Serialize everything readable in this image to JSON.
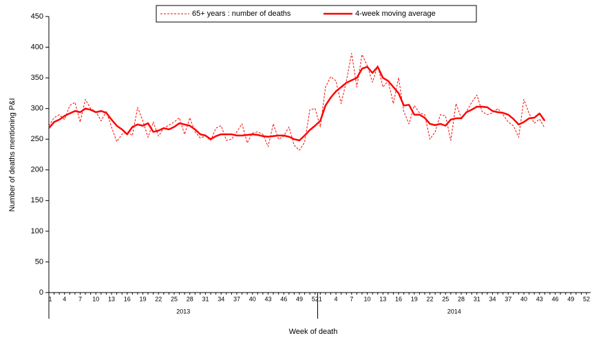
{
  "chart_data": {
    "type": "line",
    "y_label": "Number of deaths mentioning P&I",
    "x_label": "Week of death",
    "x_groups": [
      "2013",
      "2014"
    ],
    "categories": [
      "1",
      null,
      null,
      "4",
      null,
      null,
      "7",
      null,
      null,
      "10",
      null,
      null,
      "13",
      null,
      null,
      "16",
      null,
      null,
      "19",
      null,
      null,
      "22",
      null,
      null,
      "25",
      null,
      null,
      "28",
      null,
      null,
      "31",
      null,
      null,
      "34",
      null,
      null,
      "37",
      null,
      null,
      "40",
      null,
      null,
      "43",
      null,
      null,
      "46",
      null,
      null,
      "49",
      null,
      null,
      "52",
      "1",
      null,
      null,
      "4",
      null,
      null,
      "7",
      null,
      null,
      "10",
      null,
      null,
      "13",
      null,
      null,
      "16",
      null,
      null,
      "19",
      null,
      null,
      "22",
      null,
      null,
      "25",
      null,
      null,
      "28",
      null,
      null,
      "31",
      null,
      null,
      "34",
      null,
      null,
      "37",
      null,
      null,
      "40",
      null,
      null,
      "43",
      null,
      null,
      "46",
      null,
      null,
      "49",
      null,
      null,
      "52"
    ],
    "ylim": [
      0,
      450
    ],
    "yticks": [
      0,
      50,
      100,
      150,
      200,
      250,
      300,
      350,
      400,
      450
    ],
    "series": [
      {
        "name": "65+ years : number of deaths",
        "color": "#ff0000",
        "dashed": true,
        "values": [
          272,
          285,
          290,
          282,
          305,
          310,
          278,
          315,
          300,
          295,
          280,
          295,
          270,
          246,
          258,
          262,
          256,
          302,
          280,
          253,
          278,
          255,
          268,
          273,
          278,
          285,
          258,
          285,
          262,
          252,
          255,
          248,
          268,
          272,
          248,
          250,
          262,
          275,
          244,
          260,
          262,
          258,
          238,
          275,
          250,
          255,
          270,
          240,
          232,
          245,
          298,
          300,
          270,
          335,
          352,
          345,
          308,
          345,
          390,
          335,
          388,
          370,
          343,
          370,
          335,
          345,
          308,
          350,
          295,
          275,
          305,
          293,
          290,
          250,
          262,
          290,
          288,
          248,
          308,
          285,
          295,
          310,
          322,
          295,
          290,
          293,
          300,
          290,
          278,
          272,
          253,
          315,
          292,
          276,
          283,
          268,
          null,
          null,
          null,
          null,
          null,
          null,
          null,
          null
        ]
      },
      {
        "name": "4-week moving average",
        "color": "#ff0000",
        "dashed": false,
        "values": [
          268,
          278,
          282,
          288,
          292,
          296,
          294,
          300,
          298,
          294,
          296,
          293,
          282,
          272,
          266,
          258,
          270,
          274,
          272,
          276,
          262,
          264,
          268,
          266,
          270,
          276,
          274,
          272,
          266,
          258,
          256,
          250,
          255,
          258,
          258,
          258,
          256,
          256,
          257,
          258,
          257,
          255,
          254,
          255,
          256,
          256,
          254,
          250,
          248,
          256,
          265,
          272,
          280,
          305,
          318,
          328,
          335,
          342,
          346,
          350,
          365,
          368,
          358,
          368,
          350,
          345,
          335,
          325,
          305,
          306,
          290,
          290,
          285,
          275,
          273,
          275,
          272,
          282,
          284,
          284,
          294,
          298,
          303,
          303,
          302,
          296,
          294,
          293,
          290,
          283,
          274,
          278,
          284,
          285,
          292,
          280,
          null,
          null,
          null,
          null,
          null,
          null,
          null,
          null
        ]
      }
    ]
  }
}
